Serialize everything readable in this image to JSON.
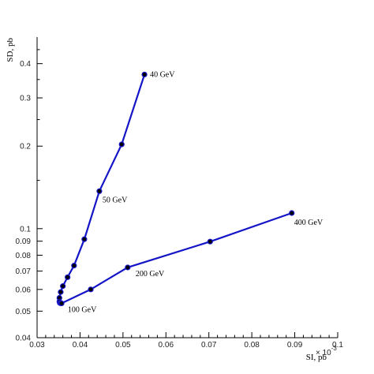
{
  "chart_data": {
    "type": "line",
    "xlabel": "SI, pb",
    "ylabel": "SD, pb",
    "x_multiplier_label": "× 10",
    "x_multiplier_exponent": "-3",
    "xlim": [
      0.03,
      0.1
    ],
    "ylim": [
      0.04,
      0.5
    ],
    "y_scale": "log",
    "grid": false,
    "x_ticks": [
      {
        "value": 0.03,
        "label": "0.03"
      },
      {
        "value": 0.04,
        "label": "0.04"
      },
      {
        "value": 0.05,
        "label": "0.05"
      },
      {
        "value": 0.06,
        "label": "0.06"
      },
      {
        "value": 0.07,
        "label": "0.07"
      },
      {
        "value": 0.08,
        "label": "0.08"
      },
      {
        "value": 0.09,
        "label": "0.09"
      },
      {
        "value": 0.1,
        "label": "0.1"
      }
    ],
    "y_ticks": [
      {
        "value": 0.04,
        "label": "0.04"
      },
      {
        "value": 0.05,
        "label": "0.05"
      },
      {
        "value": 0.06,
        "label": "0.06"
      },
      {
        "value": 0.07,
        "label": "0.07"
      },
      {
        "value": 0.08,
        "label": "0.08"
      },
      {
        "value": 0.09,
        "label": "0.09"
      },
      {
        "value": 0.1,
        "label": "0.1"
      },
      {
        "value": 0.2,
        "label": "0.2"
      },
      {
        "value": 0.3,
        "label": "0.3"
      },
      {
        "value": 0.4,
        "label": "0.4"
      }
    ],
    "y_minor_ticks": [
      0.15,
      0.25,
      0.35,
      0.45
    ],
    "series": [
      {
        "color": "#1515c8",
        "x": [
          0.055,
          0.0497,
          0.0445,
          0.041,
          0.0386,
          0.0371,
          0.036,
          0.0355,
          0.0352,
          0.0352,
          0.0353,
          0.0355,
          0.0357,
          0.0425,
          0.0511,
          0.0703,
          0.0893
        ],
        "y": [
          0.365,
          0.203,
          0.137,
          0.0915,
          0.0733,
          0.0665,
          0.0617,
          0.0587,
          0.0559,
          0.0542,
          0.0536,
          0.0534,
          0.0534,
          0.06,
          0.0722,
          0.0897,
          0.114
        ]
      }
    ],
    "annotations": [
      {
        "text": "40 GeV",
        "point_index": 0
      },
      {
        "text": "50 GeV",
        "point_index": 2
      },
      {
        "text": "100 GeV",
        "point_index": 11
      },
      {
        "text": "200 GeV",
        "point_index": 14
      },
      {
        "text": "400 GeV",
        "point_index": 16
      }
    ]
  }
}
